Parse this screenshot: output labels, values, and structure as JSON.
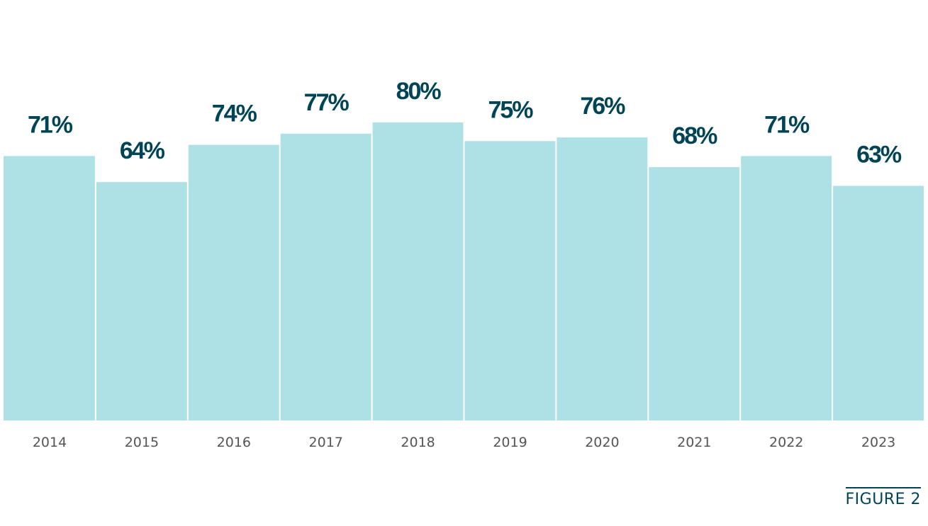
{
  "chart_data": {
    "type": "bar",
    "categories": [
      "2014",
      "2015",
      "2016",
      "2017",
      "2018",
      "2019",
      "2020",
      "2021",
      "2022",
      "2023"
    ],
    "values": [
      71,
      64,
      74,
      77,
      80,
      75,
      76,
      68,
      71,
      63
    ],
    "data_labels": [
      "71%",
      "64%",
      "74%",
      "77%",
      "80%",
      "75%",
      "76%",
      "68%",
      "71%",
      "63%"
    ],
    "title": "",
    "xlabel": "",
    "ylabel": "",
    "ylim": [
      0,
      80
    ],
    "grid": false,
    "legend": "none",
    "colors": {
      "bar": "#aee1e5",
      "value_label": "#004456",
      "tick_label": "#555555"
    }
  },
  "figure": {
    "label": "FIGURE 2"
  }
}
